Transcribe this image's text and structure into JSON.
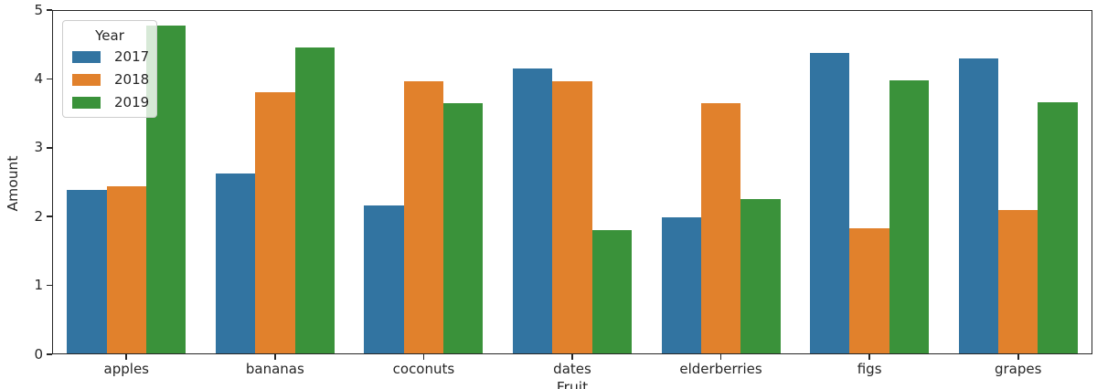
{
  "chart_data": {
    "type": "bar",
    "title": "",
    "xlabel": "Fruit",
    "ylabel": "Amount",
    "categories": [
      "apples",
      "bananas",
      "coconuts",
      "dates",
      "elderberries",
      "figs",
      "grapes"
    ],
    "series": [
      {
        "name": "2017",
        "color": "#3274a1",
        "values": [
          2.39,
          2.63,
          2.16,
          4.15,
          1.99,
          4.38,
          4.3
        ]
      },
      {
        "name": "2018",
        "color": "#e1812c",
        "values": [
          2.44,
          3.8,
          3.97,
          3.97,
          3.65,
          1.83,
          2.09
        ]
      },
      {
        "name": "2019",
        "color": "#3a923a",
        "values": [
          4.78,
          4.46,
          3.65,
          1.81,
          2.26,
          3.98,
          3.66
        ]
      }
    ],
    "ylim": [
      0,
      5
    ],
    "yticks": [
      0,
      1,
      2,
      3,
      4,
      5
    ],
    "legend": {
      "title": "Year",
      "position": "upper-left",
      "frame_alpha": 0.8
    },
    "grid": false,
    "axis_color": "#262626",
    "background_color": "#ffffff"
  }
}
